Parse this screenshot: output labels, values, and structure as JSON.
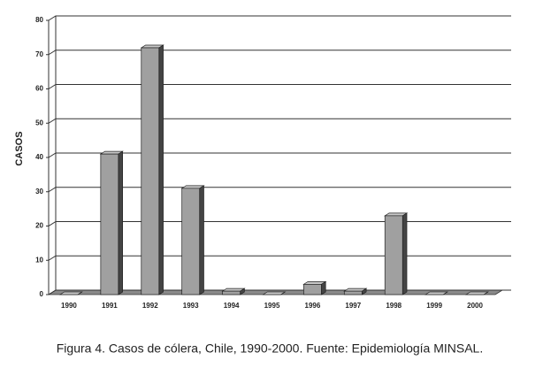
{
  "chart_data": {
    "type": "bar",
    "ylabel": "CASOS",
    "caption": "Figura 4. Casos de cólera, Chile, 1990-2000. Fuente: Epidemiología MINSAL.",
    "categories": [
      "1990",
      "1991",
      "1992",
      "1993",
      "1994",
      "1995",
      "1996",
      "1997",
      "1998",
      "1999",
      "2000"
    ],
    "values": [
      0,
      41,
      72,
      31,
      1,
      0,
      3,
      1,
      23,
      0,
      0
    ],
    "color": "#a0a0a0",
    "ylim": [
      0,
      80
    ],
    "yticks": [
      0,
      10,
      20,
      30,
      40,
      50,
      60,
      70,
      80
    ],
    "grid": true
  }
}
